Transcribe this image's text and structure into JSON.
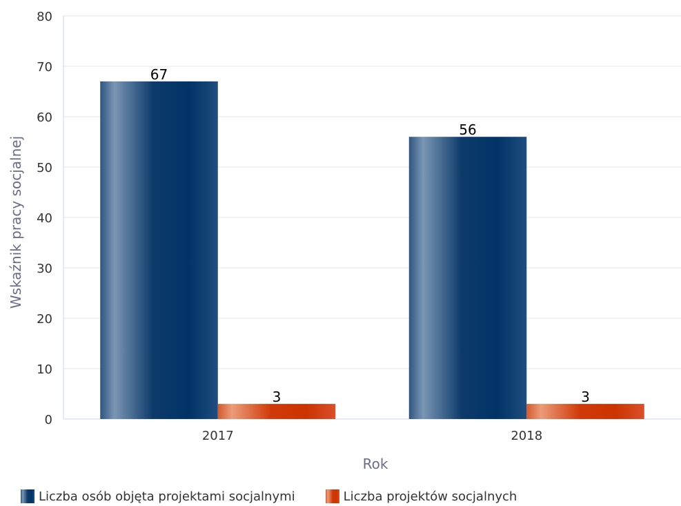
{
  "chart_data": {
    "type": "bar",
    "categories": [
      "2017",
      "2018"
    ],
    "series": [
      {
        "name": "Liczba osób objęta projektami socjalnymi",
        "values": [
          67,
          56
        ],
        "color": "#003366"
      },
      {
        "name": "Liczba projektów socjalnych",
        "values": [
          3,
          3
        ],
        "color": "#cc3300"
      }
    ],
    "xlabel": "Rok",
    "ylabel": "Wskaźnik pracy socjalnej",
    "ylim": [
      0,
      80
    ],
    "yticks": [
      0,
      10,
      20,
      30,
      40,
      50,
      60,
      70,
      80
    ],
    "grid": true,
    "legend_position": "bottom-left",
    "data_labels": true
  }
}
